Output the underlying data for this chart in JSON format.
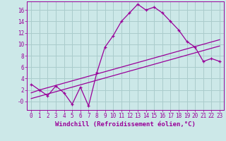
{
  "xlabel": "Windchill (Refroidissement éolien,°C)",
  "background_color": "#cce8e8",
  "line_color": "#990099",
  "grid_color": "#aacccc",
  "hours": [
    0,
    1,
    2,
    3,
    4,
    5,
    6,
    7,
    8,
    9,
    10,
    11,
    12,
    13,
    14,
    15,
    16,
    17,
    18,
    19,
    20,
    21,
    22,
    23
  ],
  "temp_values": [
    3.0,
    2.0,
    1.0,
    2.7,
    1.5,
    -0.5,
    2.5,
    -0.8,
    5.0,
    9.5,
    11.5,
    14.0,
    15.5,
    17.0,
    16.0,
    16.5,
    15.5,
    14.0,
    12.5,
    10.5,
    9.5,
    7.0,
    7.5,
    7.0
  ],
  "trend1": [
    1.5,
    2.0,
    2.4,
    2.8,
    3.2,
    3.6,
    4.0,
    4.4,
    4.8,
    5.2,
    5.6,
    6.0,
    6.4,
    6.8,
    7.2,
    7.6,
    8.0,
    8.4,
    8.8,
    9.2,
    9.6,
    10.0,
    10.4,
    10.8
  ],
  "trend2": [
    0.5,
    0.9,
    1.3,
    1.7,
    2.1,
    2.5,
    2.9,
    3.3,
    3.7,
    4.1,
    4.5,
    4.9,
    5.3,
    5.7,
    6.1,
    6.5,
    6.9,
    7.3,
    7.7,
    8.1,
    8.5,
    8.9,
    9.3,
    9.7
  ],
  "ylim": [
    -1.5,
    17.5
  ],
  "xlim": [
    -0.5,
    23.5
  ],
  "yticks": [
    0,
    2,
    4,
    6,
    8,
    10,
    12,
    14,
    16
  ],
  "ytick_labels": [
    "-0",
    "2",
    "4",
    "6",
    "8",
    "10",
    "12",
    "14",
    "16"
  ],
  "xticks": [
    0,
    1,
    2,
    3,
    4,
    5,
    6,
    7,
    8,
    9,
    10,
    11,
    12,
    13,
    14,
    15,
    16,
    17,
    18,
    19,
    20,
    21,
    22,
    23
  ],
  "xlabel_fontsize": 6.5,
  "tick_fontsize": 5.5
}
